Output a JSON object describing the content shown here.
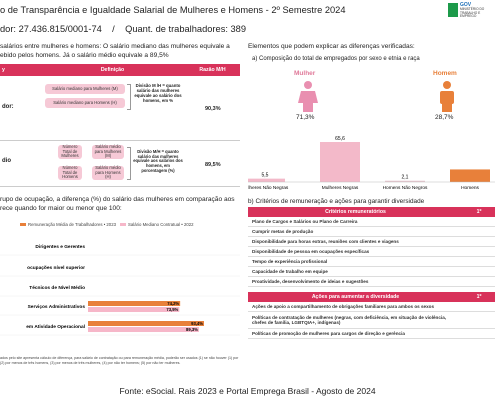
{
  "header": {
    "title": "o de Transparência e Igualdade Salarial de Mulheres e Homens - 2º Semestre 2024",
    "line2": "dor: 27.436.815/0001-74    /    Quant. de trabalhadores: 389",
    "logo": [
      "MINISTÉRIO DO",
      "TRABALHO E",
      "EMPREGO"
    ],
    "logo_gov": "GOV"
  },
  "pay_gap": {
    "intro": [
      "salários entre mulheres e homens: O salário mediano das mulheres equivale a",
      "ebido pelos homens. Já o salário médio equivale a 89,5%"
    ],
    "headers": [
      "y",
      "Definição",
      "Razão M/H"
    ],
    "median": {
      "left": "dor:",
      "women": "Salário mediano para Mulheres (M)",
      "men": "Salário mediano para Homens (H)",
      "division": "Divisão M /H = quanto salário das mulheres equivale ao salário dos homens, em %",
      "ratio": "90,3%"
    },
    "mean": {
      "left": "dio",
      "women_count": "Número Total de Mulheres",
      "women_salary": "Salário médio para Mulheres (M)",
      "men_count": "Número Total de Homens",
      "men_salary": "Salário médio para Homens (H)",
      "division": "Divisão M/H = quanto salário das mulheres equivale aos salários dos homens, em porcentagem (%)",
      "ratio": "89,5%"
    }
  },
  "explain": {
    "heading": "Elementos que podem explicar as diferenças verificadas:",
    "a": "a) Composição do total de empregados por sexo e etnia e raça",
    "woman": "Mulher",
    "woman_share": "71,3%",
    "man": "Homem",
    "man_share": "28,7%"
  },
  "occupation": {
    "intro": [
      "rupo de ocupação, a diferença (%) do salário das mulheres em comparação aos",
      "rece quando for maior ou menor que 100:"
    ],
    "footnote": [
      "ados pelo site apresenta cálculo de diferença, para salário de contratação ou para remuneração média, poderão ser usados (1) se não houver (1) por",
      "(2) por menos de três homens, (3) por menos de três mulheres, (4) por não ter homens; (5) por não ter mulheres."
    ]
  },
  "criteria": {
    "heading": "b) Critérios de remuneração e ações para garantir diversidade",
    "head1": "Critérios remuneratórios",
    "col1": "1º",
    "rows1": [
      "Plano de Cargos e Salários ou Plano de Carreira",
      "Cumprir metas de produção",
      "Disponibilidade para horas extras, reuniões com clientes e viagens",
      "Disponibilidade de pessoa em ocupações específicas",
      "Tempo de experiência profissional",
      "Capacidade de trabalho em equipe",
      "Proatividade, desenvolvimento de ideias e sugestões"
    ],
    "head2": "Ações para aumentar a diversidade",
    "col2": "1º",
    "rows2": [
      "Ações de apoio a compartilhamento de obrigações familiares para ambos os sexos",
      "Políticas de contratação de mulheres (negras, com deficiência, em situação de violência, chefes de família, LGBTQIA+, indígenas)",
      "Políticas de promoção de mulheres para cargos de direção e gerência"
    ]
  },
  "footer": "Fonte: eSocial. Rais 2023 e Portal Emprega Brasil - Agosto de 2024",
  "chart_data": [
    {
      "type": "bar",
      "categories": [
        "Mulheres Não Negras",
        "Mulheres Negras",
        "Homens Não Negros",
        "Homens"
      ],
      "values": [
        5.5,
        65.6,
        2.1,
        20.6
      ],
      "value_labels": [
        "5,5",
        "65,6",
        "2,1",
        null
      ],
      "colors": [
        "#f3b9c9",
        "#f3b9c9",
        "#e8c7cf",
        "#e8803a"
      ]
    },
    {
      "type": "hbar",
      "categories": [
        "Dirigentes e Gerentes",
        "ocupações nível superior",
        "Técnicos de Nível Médio",
        "Serviços Administrativos",
        "em Atividade Operacional"
      ],
      "series": [
        {
          "name": "Remuneração Média de Trabalhadores • 2023",
          "color": "#e8803a",
          "values": [
            null,
            null,
            null,
            74.2,
            93.4
          ],
          "value_labels": [
            null,
            null,
            null,
            "74,2%",
            "93,4%"
          ]
        },
        {
          "name": "Salário Mediano Contratual • 2022",
          "color": "#f6b7c9",
          "values": [
            null,
            null,
            null,
            73.5,
            89.3
          ],
          "value_labels": [
            null,
            null,
            null,
            "73,5%",
            "89,3%"
          ]
        }
      ]
    }
  ]
}
